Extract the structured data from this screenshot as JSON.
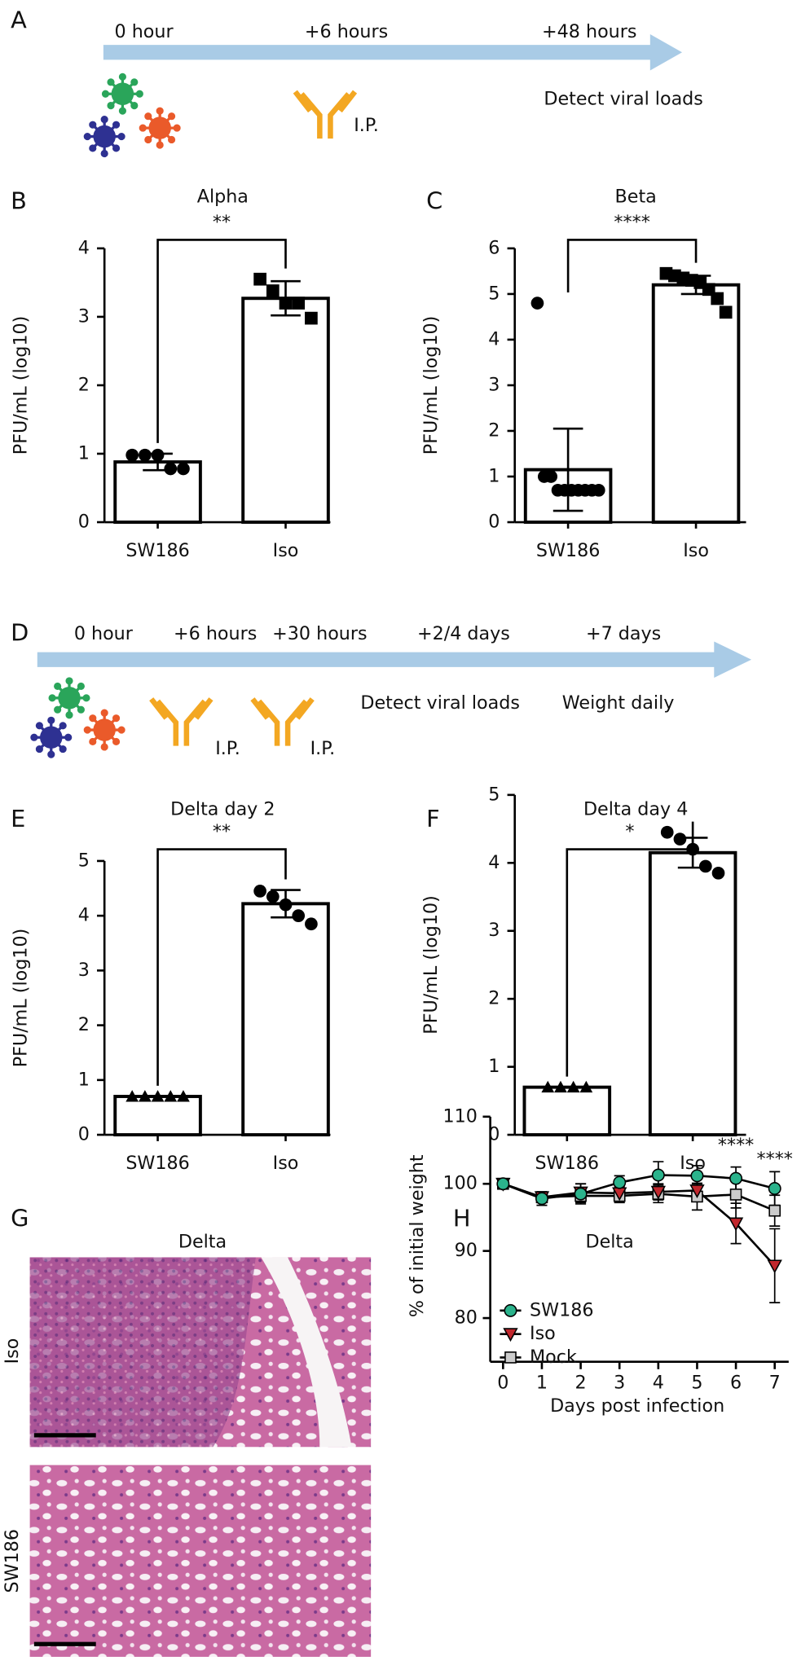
{
  "panel_labels": [
    "A",
    "B",
    "C",
    "D",
    "E",
    "F",
    "G",
    "H"
  ],
  "timeline_a": {
    "times": [
      "0 hour",
      "+6 hours",
      "+48 hours"
    ],
    "injection": "I.P.",
    "readout": "Detect viral loads"
  },
  "timeline_d": {
    "times": [
      "0 hour",
      "+6 hours",
      "+30 hours",
      "+2/4 days",
      "+7 days"
    ],
    "injections": [
      "I.P.",
      "I.P."
    ],
    "readouts": [
      "Detect viral loads",
      "Weight daily"
    ]
  },
  "histology": {
    "title": "Delta",
    "rows": [
      "Iso",
      "SW186"
    ]
  },
  "chart_data": [
    {
      "type": "bar",
      "title": "Alpha",
      "ylabel": "PFU/mL (log10)",
      "categories": [
        "SW186",
        "Iso"
      ],
      "values": [
        0.88,
        3.27
      ],
      "errors": [
        0.12,
        0.25
      ],
      "points": [
        [
          0.98,
          0.98,
          0.98,
          0.78,
          0.78
        ],
        [
          3.55,
          3.38,
          3.2,
          3.2,
          2.98
        ]
      ],
      "significance": "**",
      "ylim": [
        0,
        4
      ],
      "yticks": [
        0,
        1,
        2,
        3,
        4
      ]
    },
    {
      "type": "bar",
      "title": "Beta",
      "ylabel": "PFU/mL (log10)",
      "categories": [
        "SW186",
        "Iso"
      ],
      "values": [
        1.15,
        5.2
      ],
      "errors": [
        0.9,
        0.2
      ],
      "points": [
        [
          4.8,
          1.0,
          1.0,
          0.7,
          0.7,
          0.7,
          0.7,
          0.7,
          0.7,
          0.7
        ],
        [
          5.45,
          5.4,
          5.35,
          5.3,
          5.25,
          5.1,
          4.9,
          4.6
        ]
      ],
      "significance": "****",
      "ylim": [
        0,
        6
      ],
      "yticks": [
        0,
        1,
        2,
        3,
        4,
        5,
        6
      ]
    },
    {
      "type": "bar",
      "title": "Delta day 2",
      "ylabel": "PFU/mL (log10)",
      "categories": [
        "SW186",
        "Iso"
      ],
      "values": [
        0.7,
        4.22
      ],
      "errors": [
        0,
        0.25
      ],
      "points": [
        [
          0.7,
          0.7,
          0.7,
          0.7,
          0.7
        ],
        [
          4.45,
          4.35,
          4.2,
          4.0,
          3.85
        ]
      ],
      "significance": "**",
      "ylim": [
        0,
        5
      ],
      "yticks": [
        0,
        1,
        2,
        3,
        4,
        5
      ]
    },
    {
      "type": "bar",
      "title": "Delta day 4",
      "ylabel": "PFU/mL (log10)",
      "categories": [
        "SW186",
        "Iso"
      ],
      "values": [
        0.7,
        4.15
      ],
      "errors": [
        0,
        0.22
      ],
      "points": [
        [
          0.7,
          0.7,
          0.7,
          0.7
        ],
        [
          4.45,
          4.35,
          4.2,
          3.95,
          3.85
        ]
      ],
      "significance": "*",
      "ylim": [
        0,
        5
      ],
      "yticks": [
        0,
        1,
        2,
        3,
        4,
        5
      ]
    },
    {
      "type": "line",
      "title": "Delta",
      "xlabel": "Days post infection",
      "ylabel": "% of initial weight",
      "x": [
        0,
        1,
        2,
        3,
        4,
        5,
        6,
        7
      ],
      "series": [
        {
          "name": "SW186",
          "color": "#2bb38c",
          "marker": "circle",
          "values": [
            100,
            97.8,
            98.5,
            100.2,
            101.3,
            101.2,
            100.8,
            99.3
          ],
          "errors": [
            0.5,
            1,
            1.5,
            1,
            2,
            1.5,
            1.7,
            2.5
          ]
        },
        {
          "name": "Iso",
          "color": "#c1272d",
          "marker": "triangle-down",
          "values": [
            100,
            98,
            98.7,
            98.6,
            98.8,
            99,
            94.1,
            87.8
          ],
          "errors": [
            0.5,
            0.8,
            1.3,
            1,
            1.2,
            1,
            3,
            5.5
          ]
        },
        {
          "name": "Mock",
          "color": "#cccccc",
          "marker": "square",
          "values": [
            100,
            98,
            98.2,
            98.2,
            98.5,
            98.1,
            98.4,
            96
          ],
          "errors": [
            0.5,
            0.7,
            1,
            1,
            1.3,
            2,
            2,
            2.3
          ]
        }
      ],
      "annotations": [
        {
          "text": "****",
          "x": 6,
          "y": 105.7
        },
        {
          "text": "****",
          "x": 7,
          "y": 103.6
        }
      ],
      "xlim": [
        -0.33,
        7.36
      ],
      "ylim": [
        73.5,
        110
      ],
      "xticks": [
        0,
        1,
        2,
        3,
        4,
        5,
        6,
        7
      ],
      "yticks": [
        80,
        90,
        100,
        110
      ],
      "legend": "lower left"
    }
  ]
}
